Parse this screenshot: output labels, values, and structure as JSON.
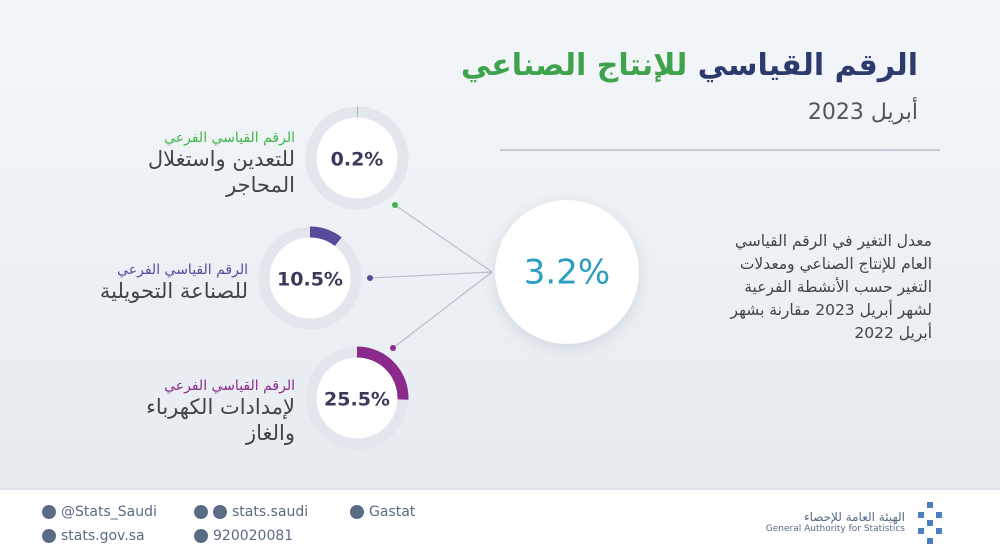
{
  "header": {
    "title_part1": "الرقم القياسي",
    "title_part2": "للإنتاج الصناعي",
    "date": "أبريل 2023"
  },
  "overall": {
    "value": 3.2,
    "label": "3.2%",
    "description": "معدل التغير في الرقم القياسي العام للإنتاج الصناعي ومعدلات التغير حسب الأنشطة الفرعية لشهر أبريل 2023 مقارنة بشهر أبريل 2022"
  },
  "indices": [
    {
      "kicker": "الرقم القياسي الفرعي",
      "name": "للتعدين واستغلال المحاجر",
      "value": 0.2,
      "label": "0.2%",
      "color": "#3fb54b"
    },
    {
      "kicker": "الرقم القياسي الفرعي",
      "name": "للصناعة التحويلية",
      "value": 10.5,
      "label": "10.5%",
      "color": "#5a4a9c"
    },
    {
      "kicker": "الرقم القياسي الفرعي",
      "name": "لإمدادات الكهرباء والغاز",
      "value": 25.5,
      "label": "25.5%",
      "color": "#8c2a8c"
    }
  ],
  "footer": {
    "twitter": "@Stats_Saudi",
    "website": "stats.gov.sa",
    "social": "stats.saudi",
    "phone": "920020081",
    "linkedin": "Gastat",
    "org_ar": "الهيئة العامة للإحصاء",
    "org_en": "General Authority for Statistics"
  }
}
